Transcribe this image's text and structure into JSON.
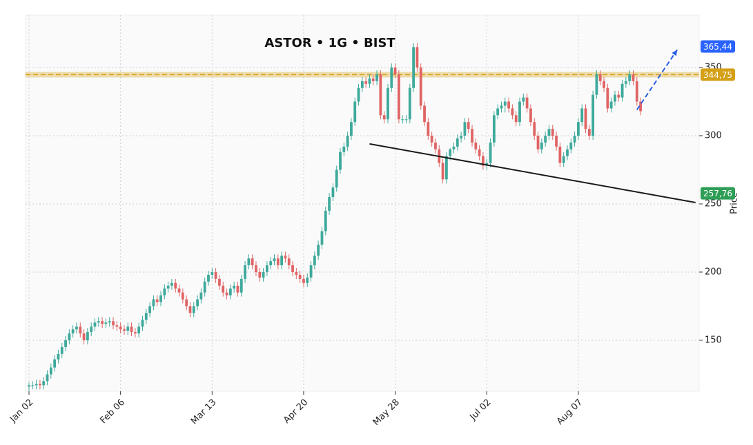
{
  "chart_data": {
    "type": "candlestick",
    "title": "ASTOR • 1G • BIST",
    "y_label": "Price",
    "up_color": "#3ea99b",
    "down_color": "#e06464",
    "ylim": [
      112.6,
      388.4
    ],
    "yticks": [
      150,
      200,
      250,
      300,
      350
    ],
    "grid": true,
    "xticks": [
      {
        "value": 0,
        "label": "Jan 02"
      },
      {
        "value": 25,
        "label": "Feb 06"
      },
      {
        "value": 50,
        "label": "Mar 13"
      },
      {
        "value": 75,
        "label": "Apr 20"
      },
      {
        "value": 100,
        "label": "May 28"
      },
      {
        "value": 125,
        "label": "Jul 02"
      },
      {
        "value": 150,
        "label": "Aug 07"
      }
    ],
    "open": [
      116,
      117,
      117,
      118,
      117,
      120,
      125,
      130,
      136,
      140,
      145,
      150,
      155,
      158,
      160,
      155,
      150,
      156,
      160,
      163,
      164,
      162,
      163,
      164,
      161,
      160,
      158,
      157,
      160,
      156,
      155,
      160,
      165,
      170,
      175,
      180,
      178,
      183,
      188,
      190,
      192,
      188,
      185,
      180,
      175,
      170,
      175,
      180,
      185,
      193,
      198,
      200,
      195,
      190,
      185,
      183,
      188,
      190,
      185,
      195,
      205,
      210,
      205,
      200,
      196,
      200,
      205,
      208,
      210,
      205,
      212,
      210,
      205,
      200,
      198,
      195,
      192,
      196,
      205,
      212,
      220,
      230,
      245,
      255,
      262,
      275,
      288,
      292,
      300,
      310,
      325,
      335,
      340,
      338,
      342,
      340,
      345,
      315,
      312,
      335,
      350,
      345,
      312,
      312,
      312,
      335,
      365,
      350,
      322,
      310,
      300,
      295,
      290,
      280,
      268,
      285,
      290,
      292,
      298,
      300,
      310,
      305,
      295,
      290,
      285,
      278,
      280,
      295,
      315,
      320,
      322,
      325,
      320,
      315,
      310,
      325,
      328,
      320,
      310,
      300,
      290,
      295,
      300,
      305,
      300,
      292,
      280,
      285,
      290,
      295,
      300,
      310,
      320,
      305,
      300,
      330,
      345,
      340,
      335,
      320,
      325,
      330,
      328,
      338,
      340,
      345,
      340,
      325
    ],
    "high": [
      119,
      120,
      121,
      121,
      123,
      128,
      133,
      139,
      143,
      148,
      153,
      158,
      161,
      163,
      163,
      158,
      159,
      163,
      166,
      167,
      167,
      166,
      167,
      167,
      164,
      163,
      161,
      163,
      163,
      159,
      163,
      168,
      173,
      178,
      183,
      183,
      186,
      191,
      193,
      195,
      195,
      191,
      188,
      183,
      178,
      178,
      183,
      188,
      196,
      201,
      203,
      203,
      198,
      193,
      188,
      191,
      193,
      193,
      198,
      208,
      213,
      213,
      208,
      203,
      203,
      208,
      211,
      213,
      213,
      215,
      215,
      213,
      208,
      203,
      201,
      198,
      199,
      208,
      215,
      223,
      233,
      248,
      258,
      265,
      278,
      291,
      295,
      303,
      313,
      328,
      338,
      343,
      343,
      345,
      345,
      348,
      348,
      318,
      338,
      353,
      353,
      348,
      315,
      315,
      338,
      368,
      368,
      353,
      325,
      313,
      303,
      298,
      293,
      283,
      288,
      291,
      295,
      301,
      303,
      313,
      313,
      308,
      298,
      293,
      288,
      283,
      298,
      318,
      323,
      325,
      328,
      328,
      323,
      318,
      328,
      331,
      331,
      323,
      313,
      303,
      298,
      303,
      308,
      308,
      303,
      295,
      288,
      293,
      298,
      303,
      313,
      323,
      323,
      308,
      333,
      348,
      348,
      343,
      338,
      328,
      333,
      333,
      341,
      343,
      348,
      348,
      343,
      328
    ],
    "low": [
      113,
      114,
      114,
      114,
      114,
      117,
      122,
      127,
      133,
      137,
      142,
      147,
      152,
      155,
      152,
      147,
      147,
      153,
      157,
      160,
      159,
      159,
      160,
      158,
      157,
      155,
      154,
      154,
      153,
      152,
      152,
      157,
      162,
      167,
      172,
      175,
      175,
      180,
      185,
      187,
      185,
      182,
      177,
      172,
      167,
      167,
      172,
      177,
      182,
      190,
      195,
      192,
      187,
      182,
      180,
      180,
      185,
      182,
      182,
      192,
      202,
      202,
      197,
      193,
      193,
      197,
      202,
      205,
      202,
      202,
      207,
      202,
      197,
      195,
      192,
      189,
      189,
      193,
      202,
      209,
      217,
      227,
      242,
      252,
      259,
      272,
      285,
      289,
      297,
      307,
      322,
      332,
      335,
      335,
      337,
      337,
      312,
      309,
      309,
      332,
      342,
      309,
      309,
      309,
      309,
      332,
      347,
      319,
      307,
      297,
      292,
      287,
      277,
      265,
      265,
      282,
      287,
      289,
      295,
      297,
      302,
      292,
      287,
      282,
      275,
      275,
      277,
      292,
      312,
      317,
      317,
      317,
      312,
      307,
      307,
      322,
      317,
      307,
      297,
      287,
      287,
      292,
      297,
      297,
      289,
      277,
      277,
      282,
      287,
      292,
      297,
      307,
      302,
      297,
      297,
      327,
      337,
      332,
      317,
      317,
      322,
      325,
      325,
      335,
      337,
      337,
      322,
      315
    ],
    "close": [
      117,
      117,
      118,
      117,
      120,
      125,
      130,
      136,
      140,
      145,
      150,
      155,
      158,
      160,
      155,
      150,
      156,
      160,
      163,
      164,
      162,
      163,
      164,
      161,
      160,
      158,
      157,
      160,
      156,
      155,
      160,
      165,
      170,
      175,
      180,
      178,
      183,
      188,
      190,
      192,
      188,
      185,
      180,
      175,
      170,
      175,
      180,
      185,
      193,
      198,
      200,
      195,
      190,
      185,
      183,
      188,
      190,
      185,
      195,
      205,
      210,
      205,
      200,
      196,
      200,
      205,
      208,
      210,
      205,
      212,
      210,
      205,
      200,
      198,
      195,
      192,
      196,
      205,
      212,
      220,
      230,
      245,
      255,
      262,
      275,
      288,
      292,
      300,
      310,
      325,
      335,
      340,
      338,
      342,
      340,
      345,
      315,
      312,
      335,
      350,
      345,
      312,
      312,
      312,
      335,
      365,
      350,
      322,
      310,
      300,
      295,
      290,
      280,
      268,
      285,
      290,
      292,
      298,
      300,
      310,
      305,
      295,
      290,
      285,
      278,
      280,
      295,
      315,
      320,
      322,
      325,
      320,
      315,
      310,
      325,
      328,
      320,
      310,
      300,
      290,
      295,
      300,
      305,
      300,
      292,
      280,
      285,
      290,
      295,
      300,
      310,
      320,
      305,
      300,
      330,
      345,
      340,
      335,
      320,
      325,
      330,
      328,
      338,
      340,
      345,
      340,
      325,
      318
    ],
    "hlines": [
      {
        "value": 344.75,
        "label": "344,75",
        "color": "#d4a017"
      }
    ],
    "lines": [
      {
        "x": [
          93,
          182
        ],
        "values": [
          294,
          251
        ],
        "color": "#1a1a1a",
        "dashed": false
      },
      {
        "x": [
          166,
          177
        ],
        "values": [
          319,
          363
        ],
        "color": "#2b5ce6",
        "dashed": true
      }
    ],
    "price_labels": [
      {
        "value": 365.44,
        "label": "365,44",
        "color": "#2962ff"
      },
      {
        "value": 257.76,
        "label": "257,76",
        "color": "#2e9e57"
      }
    ]
  }
}
